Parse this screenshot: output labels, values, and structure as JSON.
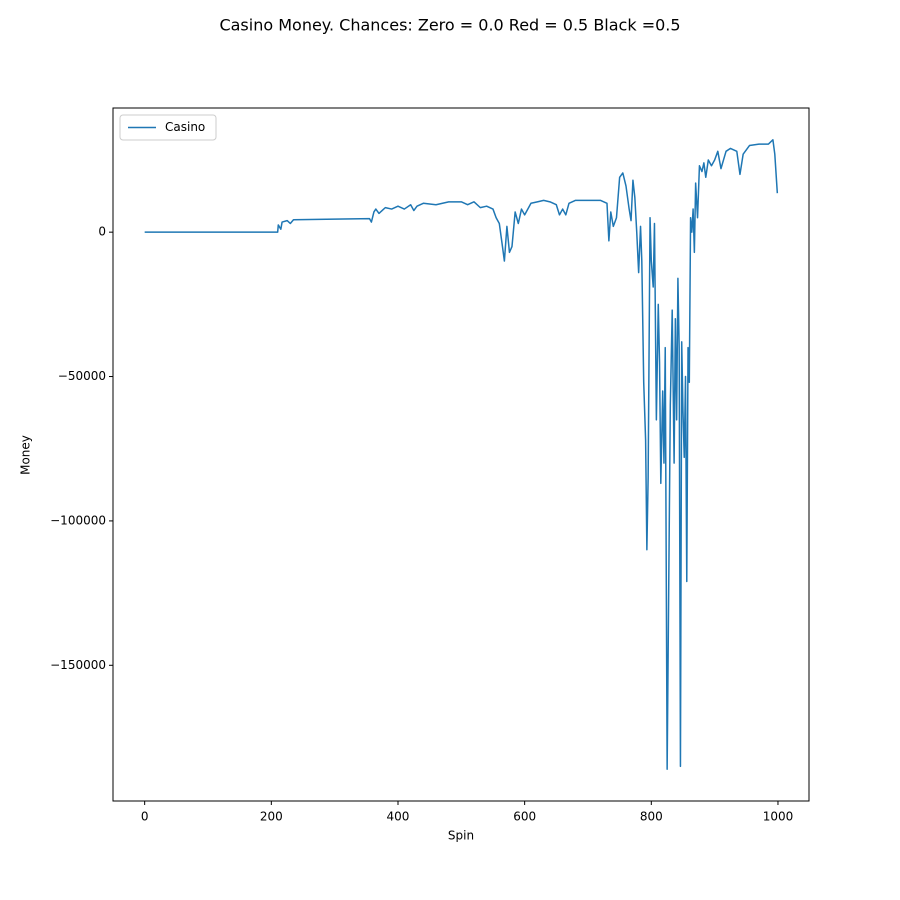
{
  "chart_data": {
    "type": "line",
    "title": "Casino Money. Chances: Zero = 0.0  Red = 0.5  Black =0.5",
    "x_label": "Spin",
    "y_label": "Money",
    "x": [
      0,
      210,
      211,
      215,
      217,
      225,
      230,
      235,
      300,
      355,
      358,
      362,
      365,
      370,
      380,
      390,
      400,
      410,
      420,
      425,
      430,
      440,
      460,
      480,
      500,
      510,
      520,
      530,
      540,
      550,
      555,
      560,
      565,
      568,
      572,
      576,
      580,
      585,
      590,
      595,
      600,
      610,
      620,
      630,
      640,
      650,
      655,
      660,
      665,
      670,
      680,
      700,
      720,
      730,
      733,
      736,
      740,
      745,
      750,
      755,
      760,
      765,
      768,
      771,
      774,
      777,
      780,
      783,
      785,
      788,
      791,
      793,
      795,
      798,
      800,
      803,
      805,
      808,
      811,
      813,
      815,
      818,
      820,
      822,
      825,
      828,
      830,
      833,
      836,
      838,
      840,
      842,
      844,
      846,
      848,
      850,
      852,
      854,
      856,
      858,
      860,
      862,
      864,
      866,
      868,
      870,
      873,
      876,
      880,
      883,
      886,
      890,
      895,
      900,
      905,
      910,
      918,
      925,
      935,
      940,
      945,
      955,
      970,
      985,
      992,
      995,
      999
    ],
    "series": [
      {
        "name": "Casino",
        "color": "#1f77b4",
        "values": [
          0,
          0,
          2500,
          1000,
          3500,
          4000,
          3000,
          4300,
          4500,
          4700,
          3500,
          7000,
          8000,
          6500,
          8500,
          8000,
          9000,
          8000,
          9500,
          7500,
          9000,
          10000,
          9500,
          10500,
          10500,
          9500,
          10500,
          8500,
          9000,
          8000,
          5000,
          3000,
          -5000,
          -10000,
          2000,
          -7000,
          -5000,
          7000,
          3000,
          8000,
          6000,
          10000,
          10500,
          11000,
          10500,
          9500,
          6000,
          8000,
          6000,
          10000,
          11000,
          11000,
          11000,
          10000,
          -3000,
          7000,
          2000,
          5000,
          19000,
          20500,
          16000,
          8000,
          4000,
          18000,
          12000,
          0,
          -14000,
          2000,
          -10000,
          -52000,
          -72000,
          -110000,
          -85000,
          5000,
          -10000,
          -19000,
          3000,
          -65000,
          -25000,
          -45000,
          -87000,
          -55000,
          -80000,
          -40000,
          -186000,
          -110000,
          -60000,
          -27000,
          -80000,
          -30000,
          -65000,
          -16000,
          -40000,
          -185000,
          -38000,
          -62000,
          -78000,
          -50000,
          -121000,
          -40000,
          -52000,
          5000,
          0,
          8000,
          -7000,
          17000,
          5000,
          23000,
          21000,
          24000,
          19000,
          25000,
          23000,
          25000,
          28000,
          22000,
          28000,
          29000,
          28000,
          20000,
          27000,
          30000,
          30500,
          30500,
          32000,
          27000,
          13500
        ]
      }
    ],
    "xlim": [
      -50,
      1049
    ],
    "ylim": [
      -197000,
      43000
    ],
    "xticks": [
      0,
      200,
      400,
      600,
      800,
      1000
    ],
    "yticks": [
      {
        "value": -150000,
        "label": "−150000"
      },
      {
        "value": -100000,
        "label": "−100000"
      },
      {
        "value": -50000,
        "label": "−50000"
      },
      0
    ],
    "legend": "upper left",
    "grid": false
  }
}
